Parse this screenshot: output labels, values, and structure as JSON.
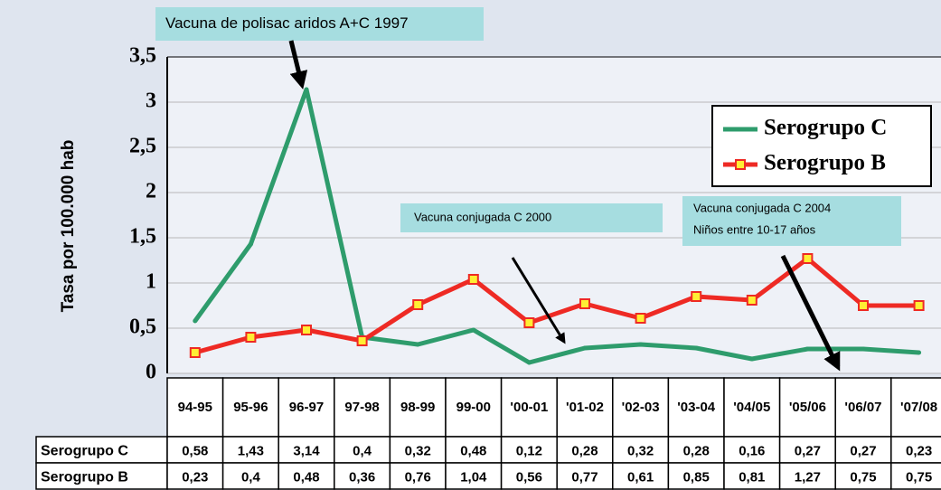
{
  "chart_data": {
    "type": "line",
    "y_label": "Tasa por 100.000 hab",
    "categories": [
      "94-95",
      "95-96",
      "96-97",
      "97-98",
      "98-99",
      "99-00",
      "'00-01",
      "'01-02",
      "'02-03",
      "'03-04",
      "'04/05",
      "'05/06",
      "'06/07",
      "'07/08"
    ],
    "series": [
      {
        "name": "Serogrupo  C",
        "color": "#2e9c6c",
        "values": [
          0.58,
          1.43,
          3.14,
          0.4,
          0.32,
          0.48,
          0.12,
          0.28,
          0.32,
          0.28,
          0.16,
          0.27,
          0.27,
          0.23
        ],
        "value_labels": [
          "0,58",
          "1,43",
          "3,14",
          "0,4",
          "0,32",
          "0,48",
          "0,12",
          "0,28",
          "0,32",
          "0,28",
          "0,16",
          "0,27",
          "0,27",
          "0,23"
        ]
      },
      {
        "name": "Serogrupo B",
        "color": "#ee2a24",
        "marker_color": "#ffee33",
        "values": [
          0.23,
          0.4,
          0.48,
          0.36,
          0.76,
          1.04,
          0.56,
          0.77,
          0.61,
          0.85,
          0.81,
          1.27,
          0.75,
          0.75
        ],
        "value_labels": [
          "0,23",
          "0,4",
          "0,48",
          "0,36",
          "0,76",
          "1,04",
          "0,56",
          "0,77",
          "0,61",
          "0,85",
          "0,81",
          "1,27",
          "0,75",
          "0,75"
        ]
      }
    ],
    "ylim": [
      0,
      3.5
    ],
    "yticks": [
      0,
      {
        "value": 0.5,
        "label": "0,5"
      },
      1,
      {
        "value": 1.5,
        "label": "1,5"
      },
      2,
      {
        "value": 2.5,
        "label": "2,5"
      },
      3,
      {
        "value": 3.5,
        "label": "3,5"
      }
    ],
    "grid": true,
    "legend": "upper right",
    "annotations": [
      {
        "lines": [
          "Vacuna de polisac aridos A+C 1997"
        ]
      },
      {
        "lines": [
          "Vacuna conjugada  C 2000"
        ]
      },
      {
        "lines": [
          "Vacuna conjugada  C 2004",
          "Niños entre 10-17 años"
        ]
      }
    ]
  }
}
